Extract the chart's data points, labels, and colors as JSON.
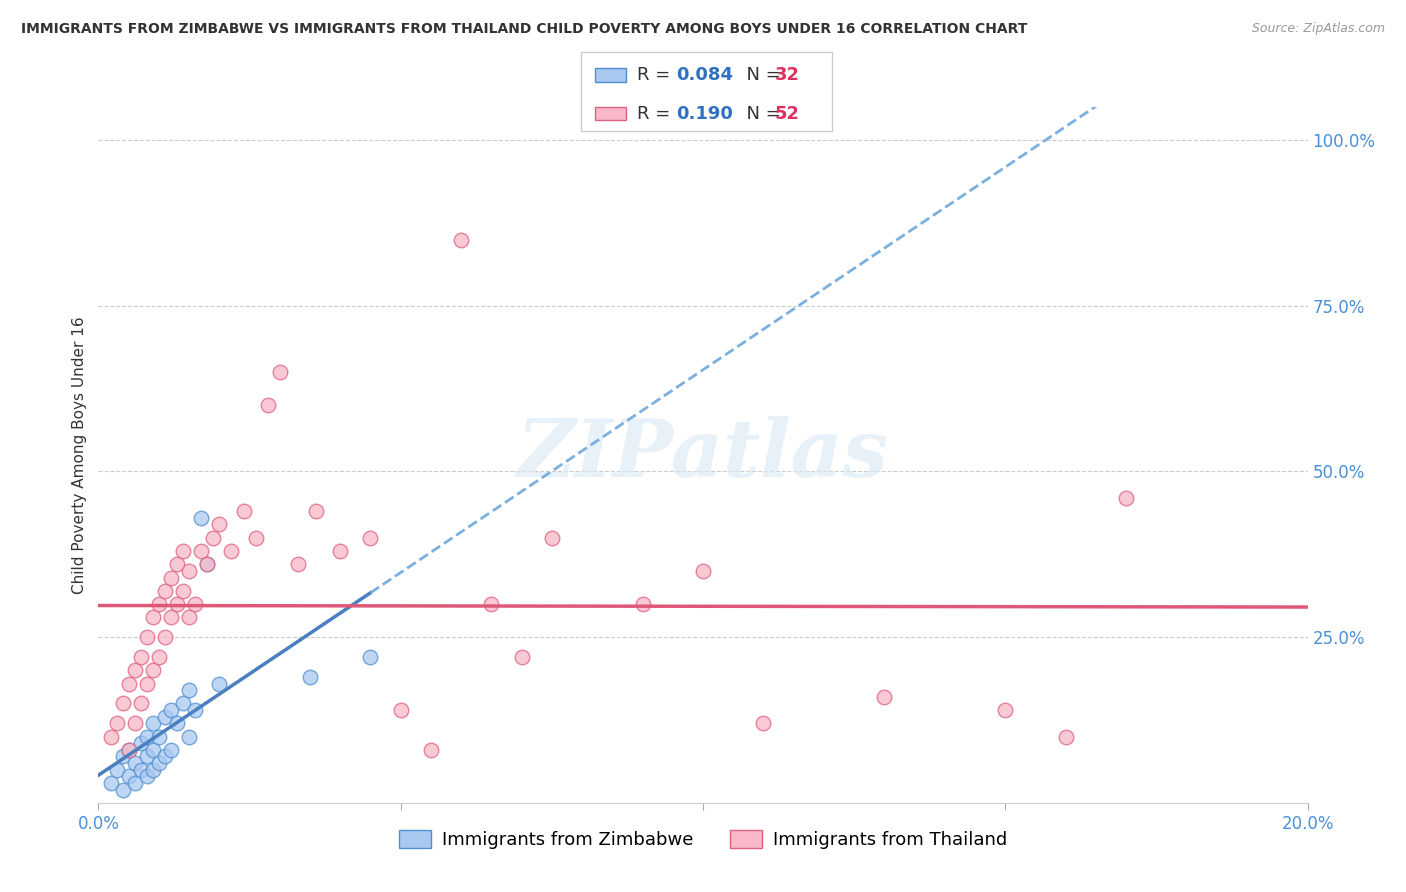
{
  "title": "IMMIGRANTS FROM ZIMBABWE VS IMMIGRANTS FROM THAILAND CHILD POVERTY AMONG BOYS UNDER 16 CORRELATION CHART",
  "source": "Source: ZipAtlas.com",
  "ylabel": "Child Poverty Among Boys Under 16",
  "xlim": [
    0.0,
    0.2
  ],
  "ylim": [
    0.0,
    1.05
  ],
  "background_color": "#ffffff",
  "grid_color": "#cccccc",
  "watermark_text": "ZIPatlas",
  "series1_label": "Immigrants from Zimbabwe",
  "series1_scatter_color": "#a8c8f0",
  "series1_edge_color": "#5090d0",
  "series1_R": "0.084",
  "series1_N": "32",
  "series1_line_color": "#4a7fc0",
  "series1_line_style": "solid",
  "series1_dash_color": "#7ab0e0",
  "series2_label": "Immigrants from Thailand",
  "series2_scatter_color": "#f8b8c8",
  "series2_edge_color": "#e06080",
  "series2_R": "0.190",
  "series2_N": "52",
  "series2_line_color": "#e05878",
  "series2_line_style": "solid",
  "legend_R_color": "#3070c0",
  "legend_N_color": "#e03060",
  "tick_color": "#4a90d9",
  "zimbabwe_x": [
    0.002,
    0.003,
    0.004,
    0.004,
    0.005,
    0.005,
    0.006,
    0.006,
    0.007,
    0.007,
    0.008,
    0.008,
    0.008,
    0.009,
    0.009,
    0.009,
    0.01,
    0.01,
    0.011,
    0.011,
    0.012,
    0.012,
    0.013,
    0.014,
    0.015,
    0.015,
    0.016,
    0.017,
    0.018,
    0.02,
    0.035,
    0.045
  ],
  "zimbabwe_y": [
    0.03,
    0.05,
    0.02,
    0.07,
    0.04,
    0.08,
    0.03,
    0.06,
    0.05,
    0.09,
    0.04,
    0.07,
    0.1,
    0.05,
    0.08,
    0.12,
    0.06,
    0.1,
    0.07,
    0.13,
    0.08,
    0.14,
    0.12,
    0.15,
    0.1,
    0.17,
    0.14,
    0.43,
    0.36,
    0.18,
    0.19,
    0.22
  ],
  "thailand_x": [
    0.002,
    0.003,
    0.004,
    0.005,
    0.005,
    0.006,
    0.006,
    0.007,
    0.007,
    0.008,
    0.008,
    0.009,
    0.009,
    0.01,
    0.01,
    0.011,
    0.011,
    0.012,
    0.012,
    0.013,
    0.013,
    0.014,
    0.014,
    0.015,
    0.015,
    0.016,
    0.017,
    0.018,
    0.019,
    0.02,
    0.022,
    0.024,
    0.026,
    0.028,
    0.03,
    0.033,
    0.036,
    0.04,
    0.045,
    0.05,
    0.055,
    0.06,
    0.065,
    0.07,
    0.075,
    0.09,
    0.1,
    0.11,
    0.13,
    0.15,
    0.16,
    0.17
  ],
  "thailand_y": [
    0.1,
    0.12,
    0.15,
    0.08,
    0.18,
    0.12,
    0.2,
    0.15,
    0.22,
    0.18,
    0.25,
    0.2,
    0.28,
    0.22,
    0.3,
    0.25,
    0.32,
    0.28,
    0.34,
    0.3,
    0.36,
    0.32,
    0.38,
    0.28,
    0.35,
    0.3,
    0.38,
    0.36,
    0.4,
    0.42,
    0.38,
    0.44,
    0.4,
    0.6,
    0.65,
    0.36,
    0.44,
    0.38,
    0.4,
    0.14,
    0.08,
    0.85,
    0.3,
    0.22,
    0.4,
    0.3,
    0.35,
    0.12,
    0.16,
    0.14,
    0.1,
    0.46
  ]
}
